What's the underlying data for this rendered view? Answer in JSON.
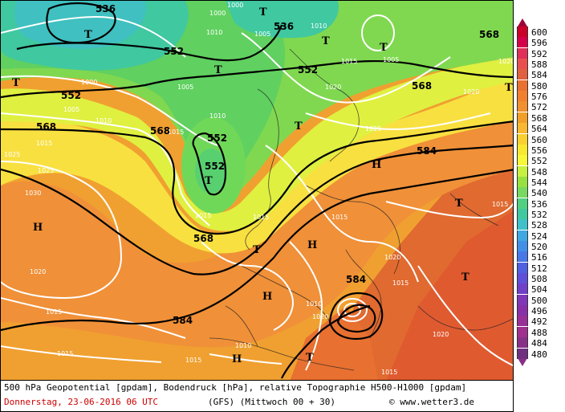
{
  "map": {
    "geopotential_labels": [
      "536",
      "536",
      "552",
      "552",
      "552",
      "568",
      "568",
      "552",
      "552",
      "568",
      "568",
      "584",
      "584",
      "584",
      "568"
    ],
    "pressure_labels": [
      "1000",
      "1010",
      "1005",
      "1010",
      "1000",
      "1015",
      "1005",
      "1000",
      "1005",
      "1005",
      "1010",
      "1010",
      "1015",
      "1020",
      "1025",
      "1030",
      "1025",
      "1020",
      "1015",
      "1015",
      "1025",
      "1020",
      "1015",
      "1020",
      "1015",
      "1010",
      "1020",
      "1015",
      "1015",
      "1015",
      "1010",
      "1015",
      "1015",
      "1015",
      "1020",
      "1020"
    ],
    "pressure_system_labels": [
      "T",
      "T",
      "T",
      "T",
      "T",
      "T",
      "T",
      "T",
      "T",
      "H",
      "H",
      "H",
      "H",
      "H",
      "T",
      "T",
      "T",
      "T"
    ]
  },
  "legend": {
    "values": [
      "600",
      "596",
      "592",
      "588",
      "584",
      "580",
      "576",
      "572",
      "568",
      "564",
      "560",
      "556",
      "552",
      "548",
      "544",
      "540",
      "536",
      "532",
      "528",
      "524",
      "520",
      "516",
      "512",
      "508",
      "504",
      "500",
      "496",
      "492",
      "488",
      "484",
      "480"
    ],
    "colors": [
      "#c8002a",
      "#d4004a",
      "#e0305a",
      "#e85050",
      "#e06040",
      "#e87030",
      "#f08030",
      "#f09030",
      "#f0a028",
      "#f8b830",
      "#f8d030",
      "#f8e830",
      "#f8f838",
      "#c8f040",
      "#98e040",
      "#78d860",
      "#50d080",
      "#40c8a0",
      "#40c0c8",
      "#40a8e0",
      "#4090e8",
      "#4878e8",
      "#5060e0",
      "#6050d8",
      "#7040c8",
      "#8038b8",
      "#8830a8",
      "#983098",
      "#a03090",
      "#883088",
      "#703080"
    ]
  },
  "footer": {
    "line1": "500 hPa Geopotential [gpdam], Bodendruck [hPa], relative Topographie H500-H1000 [gpdam]",
    "date": "Donnerstag, 23-06-2016  06 UTC",
    "run": "(GFS)  (Mittwoch 00 + 30)",
    "copyright": "© www.wetter3.de"
  }
}
